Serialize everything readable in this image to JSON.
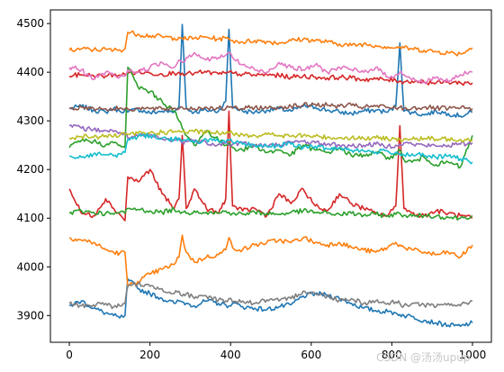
{
  "watermark": "CSDN @汤汤upup",
  "chart_data": {
    "type": "line",
    "title": "",
    "xlabel": "",
    "ylabel": "",
    "xlim": [
      -47,
      1047
    ],
    "ylim": [
      3845,
      4528
    ],
    "x_ticks": [
      0,
      200,
      400,
      600,
      800,
      1000
    ],
    "y_ticks": [
      3900,
      4000,
      4100,
      4200,
      4300,
      4400,
      4500
    ],
    "grid": false,
    "legend": "none",
    "x": [
      0,
      30,
      60,
      90,
      110,
      125,
      138,
      145,
      170,
      200,
      230,
      260,
      272,
      280,
      290,
      310,
      340,
      370,
      388,
      396,
      405,
      430,
      460,
      490,
      520,
      550,
      580,
      610,
      640,
      670,
      700,
      730,
      760,
      790,
      810,
      820,
      830,
      850,
      880,
      910,
      940,
      970,
      1000
    ],
    "series": [
      {
        "color": "#1f77b4",
        "values": [
          4325,
          4330,
          4322,
          4318,
          4326,
          4320,
          4322,
          4318,
          4324,
          4316,
          4320,
          4318,
          4330,
          4498,
          4325,
          4318,
          4322,
          4320,
          4340,
          4488,
          4330,
          4320,
          4318,
          4322,
          4325,
          4320,
          4330,
          4328,
          4322,
          4318,
          4315,
          4320,
          4322,
          4318,
          4330,
          4460,
          4320,
          4318,
          4312,
          4320,
          4315,
          4310,
          4318
        ]
      },
      {
        "color": "#1f77b4",
        "values": [
          3920,
          3930,
          3915,
          3905,
          3900,
          3895,
          3900,
          3975,
          3955,
          3945,
          3935,
          3925,
          3930,
          3928,
          3925,
          3920,
          3930,
          3925,
          3922,
          3920,
          3925,
          3918,
          3915,
          3912,
          3918,
          3922,
          3940,
          3945,
          3942,
          3935,
          3925,
          3915,
          3910,
          3908,
          3905,
          3902,
          3900,
          3898,
          3890,
          3885,
          3880,
          3878,
          3885
        ]
      },
      {
        "color": "#ff7f0e",
        "values": [
          4445,
          4448,
          4446,
          4447,
          4445,
          4446,
          4448,
          4482,
          4478,
          4475,
          4473,
          4470,
          4472,
          4470,
          4468,
          4470,
          4472,
          4468,
          4470,
          4468,
          4465,
          4462,
          4465,
          4463,
          4460,
          4465,
          4468,
          4465,
          4462,
          4458,
          4455,
          4458,
          4455,
          4452,
          4450,
          4452,
          4450,
          4448,
          4445,
          4442,
          4440,
          4438,
          4450
        ]
      },
      {
        "color": "#ff7f0e",
        "values": [
          4060,
          4055,
          4050,
          4035,
          4030,
          4028,
          4030,
          3960,
          3970,
          3985,
          3995,
          4005,
          4020,
          4065,
          4030,
          4010,
          4020,
          4025,
          4035,
          4060,
          4040,
          4035,
          4045,
          4050,
          4055,
          4050,
          4060,
          4050,
          4045,
          4050,
          4040,
          4035,
          4030,
          4040,
          4050,
          4045,
          4040,
          4035,
          4030,
          4025,
          4030,
          4020,
          4045
        ]
      },
      {
        "color": "#d62728",
        "values": [
          4392,
          4395,
          4393,
          4392,
          4395,
          4394,
          4395,
          4398,
          4400,
          4398,
          4396,
          4398,
          4400,
          4398,
          4396,
          4398,
          4400,
          4396,
          4398,
          4400,
          4398,
          4396,
          4394,
          4395,
          4393,
          4390,
          4392,
          4390,
          4388,
          4390,
          4388,
          4385,
          4386,
          4384,
          4383,
          4382,
          4380,
          4382,
          4380,
          4378,
          4380,
          4378,
          4378
        ]
      },
      {
        "color": "#d62728",
        "values": [
          4160,
          4110,
          4105,
          4140,
          4120,
          4108,
          4095,
          4185,
          4175,
          4200,
          4150,
          4120,
          4140,
          4270,
          4120,
          4160,
          4120,
          4110,
          4140,
          4320,
          4125,
          4115,
          4120,
          4105,
          4150,
          4130,
          4160,
          4125,
          4115,
          4150,
          4130,
          4120,
          4110,
          4105,
          4125,
          4290,
          4120,
          4110,
          4105,
          4115,
          4110,
          4105,
          4100
        ]
      },
      {
        "color": "#2ca02c",
        "values": [
          4245,
          4260,
          4258,
          4250,
          4255,
          4250,
          4245,
          4410,
          4370,
          4360,
          4340,
          4320,
          4300,
          4285,
          4270,
          4250,
          4280,
          4260,
          4250,
          4255,
          4245,
          4240,
          4250,
          4235,
          4240,
          4230,
          4250,
          4240,
          4235,
          4245,
          4228,
          4230,
          4235,
          4225,
          4230,
          4240,
          4220,
          4215,
          4225,
          4210,
          4215,
          4205,
          4270
        ]
      },
      {
        "color": "#2ca02c",
        "values": [
          4110,
          4115,
          4112,
          4110,
          4108,
          4112,
          4110,
          4120,
          4118,
          4115,
          4112,
          4118,
          4115,
          4112,
          4110,
          4115,
          4112,
          4110,
          4115,
          4112,
          4110,
          4108,
          4112,
          4110,
          4108,
          4112,
          4115,
          4112,
          4110,
          4108,
          4110,
          4106,
          4108,
          4105,
          4108,
          4110,
          4106,
          4104,
          4106,
          4104,
          4102,
          4100,
          4105
        ]
      },
      {
        "color": "#9467bd",
        "values": [
          4290,
          4285,
          4282,
          4280,
          4278,
          4276,
          4275,
          4265,
          4268,
          4270,
          4262,
          4260,
          4262,
          4255,
          4258,
          4260,
          4255,
          4252,
          4255,
          4250,
          4252,
          4255,
          4250,
          4248,
          4252,
          4255,
          4258,
          4255,
          4252,
          4250,
          4248,
          4250,
          4252,
          4248,
          4250,
          4252,
          4255,
          4252,
          4250,
          4248,
          4250,
          4252,
          4255
        ]
      },
      {
        "color": "#8c564b",
        "values": [
          4325,
          4328,
          4326,
          4325,
          4324,
          4326,
          4325,
          4324,
          4326,
          4325,
          4324,
          4326,
          4325,
          4328,
          4326,
          4325,
          4328,
          4326,
          4325,
          4328,
          4326,
          4325,
          4328,
          4326,
          4328,
          4330,
          4332,
          4334,
          4332,
          4330,
          4332,
          4328,
          4330,
          4328,
          4326,
          4328,
          4325,
          4326,
          4328,
          4326,
          4325,
          4326,
          4325
        ]
      },
      {
        "color": "#e377c2",
        "values": [
          4410,
          4405,
          4385,
          4400,
          4395,
          4390,
          4392,
          4405,
          4400,
          4410,
          4420,
          4410,
          4425,
          4420,
          4430,
          4440,
          4425,
          4430,
          4435,
          4440,
          4430,
          4415,
          4405,
          4400,
          4420,
          4410,
          4405,
          4415,
          4400,
          4410,
          4405,
          4400,
          4410,
          4390,
          4395,
          4400,
          4395,
          4385,
          4380,
          4390,
          4380,
          4395,
          4400
        ]
      },
      {
        "color": "#7f7f7f",
        "values": [
          3925,
          3920,
          3922,
          3925,
          3918,
          3920,
          3925,
          3960,
          3965,
          3960,
          3955,
          3945,
          3950,
          3940,
          3945,
          3935,
          3940,
          3932,
          3930,
          3935,
          3928,
          3930,
          3925,
          3932,
          3930,
          3935,
          3950,
          3945,
          3940,
          3932,
          3935,
          3925,
          3930,
          3925,
          3928,
          3925,
          3920,
          3925,
          3922,
          3918,
          3925,
          3920,
          3930
        ]
      },
      {
        "color": "#bcbd22",
        "values": [
          4265,
          4268,
          4266,
          4270,
          4268,
          4270,
          4272,
          4272,
          4274,
          4275,
          4276,
          4278,
          4280,
          4278,
          4276,
          4278,
          4276,
          4275,
          4274,
          4275,
          4274,
          4272,
          4270,
          4272,
          4270,
          4268,
          4270,
          4268,
          4266,
          4265,
          4266,
          4264,
          4265,
          4263,
          4264,
          4262,
          4263,
          4262,
          4264,
          4262,
          4263,
          4262,
          4262
        ]
      },
      {
        "color": "#17becf",
        "values": [
          4228,
          4225,
          4232,
          4230,
          4228,
          4232,
          4235,
          4262,
          4268,
          4270,
          4265,
          4262,
          4265,
          4258,
          4260,
          4255,
          4262,
          4258,
          4255,
          4260,
          4256,
          4252,
          4250,
          4248,
          4250,
          4252,
          4245,
          4248,
          4242,
          4245,
          4240,
          4238,
          4236,
          4238,
          4235,
          4232,
          4230,
          4232,
          4228,
          4225,
          4228,
          4222,
          4215
        ]
      }
    ]
  }
}
